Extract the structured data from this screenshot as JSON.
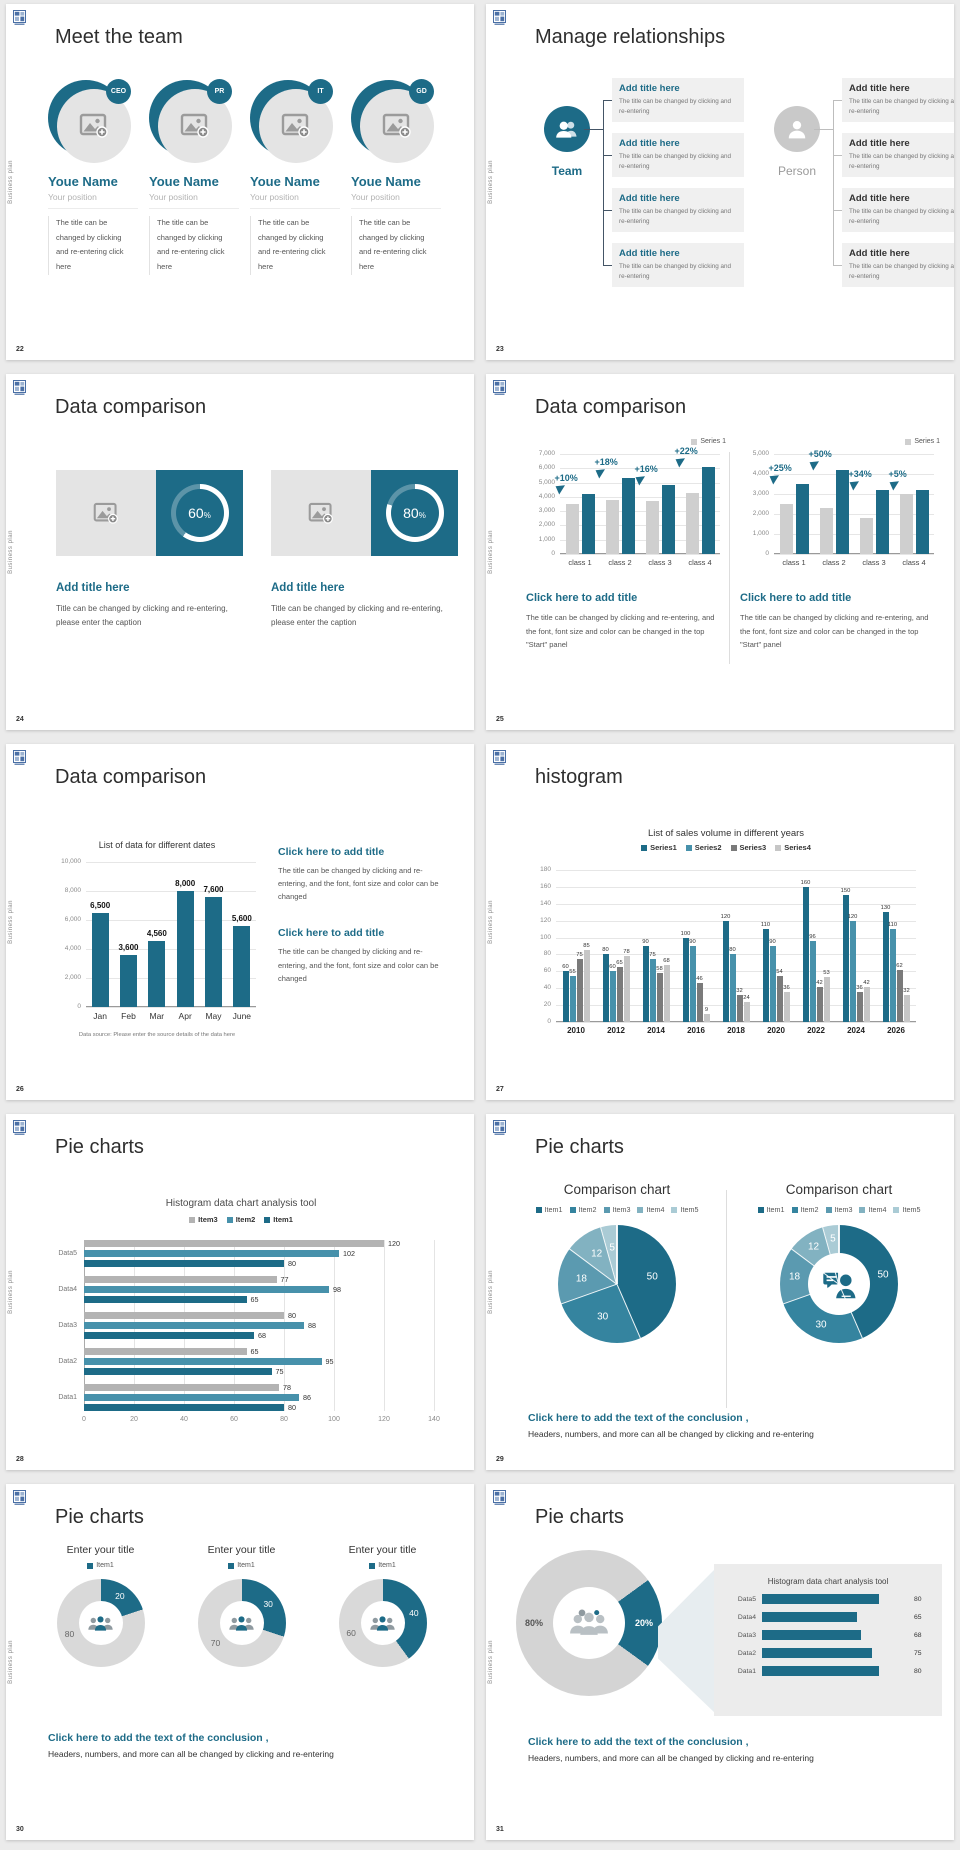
{
  "page_bg": "#ebebeb",
  "vertical_label": "Business plan",
  "colors": {
    "accent": "#1d6b87",
    "teal_mid": "#4791ab",
    "gray_bar": "#cfcfcf",
    "dark_gray_bar": "#7a7a7a",
    "light_gray_bar": "#c6c6c6",
    "donut_gray": "#d9d9d9"
  },
  "icons": {
    "logo": "grid-logo-icon",
    "image_placeholder": "image-plus-icon",
    "team": "two-people-icon",
    "person": "one-person-icon",
    "growth_arrow": "cursor-arrow-icon",
    "people_group": "three-people-icon",
    "people_gray": "three-people-gray-icon",
    "person_chat": "person-chat-icon"
  },
  "slides": {
    "s22": {
      "page": "22",
      "title": "Meet the team",
      "name": "Youe Name",
      "position": "Your position",
      "desc": "The title can be changed by clicking and re-entering click here",
      "badges": [
        "CEO",
        "PR",
        "IT",
        "GD"
      ]
    },
    "s23": {
      "page": "23",
      "title": "Manage relationships",
      "team_label": "Team",
      "person_label": "Person",
      "box_title": "Add title here",
      "box_text": "The title can be changed by clicking and re-entering"
    },
    "s24": {
      "page": "24",
      "title": "Data comparison",
      "card_title": "Add title here",
      "card_text": "Title can be changed by clicking and re-entering, please enter the caption",
      "percents": [
        "60",
        "80"
      ],
      "percent_unit": "%"
    },
    "s25": {
      "page": "25",
      "title": "Data comparison",
      "block_title": "Click here to add title",
      "block_text": "The title can be changed by clicking and re-entering, and the font, font size and color can be changed in the top \"Start\" panel"
    },
    "s26": {
      "page": "26",
      "title": "Data comparison",
      "block_title": "Click here to add title",
      "block_text": "The title can be changed by clicking and re-entering, and the font, font size and color can be changed"
    },
    "s27": {
      "page": "27",
      "title": "histogram"
    },
    "s28": {
      "page": "28",
      "title": "Pie charts"
    },
    "s29": {
      "page": "29",
      "title": "Pie charts",
      "conclusion_bold": "Click here to add the text of the conclusion ,",
      "conclusion_text": "Headers, numbers, and more can all be changed by clicking and re-entering"
    },
    "s30": {
      "page": "30",
      "title": "Pie charts",
      "group_title": "Enter your title",
      "conclusion_bold": "Click here to add the text of the conclusion ,",
      "conclusion_text": "Headers, numbers, and more can all be changed by clicking and re-entering"
    },
    "s31": {
      "page": "31",
      "title": "Pie charts",
      "conclusion_bold": "Click here to add the text of the conclusion ,",
      "conclusion_text": "Headers, numbers, and more can all be changed by clicking and re-entering"
    }
  },
  "chart_data": [
    {
      "id": "comp25a",
      "type": "bar",
      "legend": [
        "Series 1"
      ],
      "legend_position": "top-right",
      "legend_swatch": "#cfcfcf",
      "categories": [
        "class 1",
        "class 2",
        "class 3",
        "class 4"
      ],
      "series": [
        {
          "name": "base",
          "color": "#cfcfcf",
          "values": [
            3500,
            3800,
            3700,
            4300
          ]
        },
        {
          "name": "Series 1",
          "color": "#1d6b87",
          "values": [
            4200,
            5300,
            4800,
            6100
          ]
        }
      ],
      "annotations": [
        "+10%",
        "+18%",
        "+16%",
        "+22%"
      ],
      "ylim": [
        0,
        7000
      ],
      "ystep": 1000,
      "grid": true
    },
    {
      "id": "comp25b",
      "type": "bar",
      "legend": [
        "Series 1"
      ],
      "legend_position": "top-right",
      "legend_swatch": "#cfcfcf",
      "categories": [
        "class 1",
        "class 2",
        "class 3",
        "class 4"
      ],
      "series": [
        {
          "name": "base",
          "color": "#cfcfcf",
          "values": [
            2500,
            2300,
            1800,
            3000
          ]
        },
        {
          "name": "Series 1",
          "color": "#1d6b87",
          "values": [
            3500,
            4200,
            3200,
            3200
          ]
        }
      ],
      "annotations": [
        "+25%",
        "+50%",
        "+34%",
        "+5%"
      ],
      "ylim": [
        0,
        5000
      ],
      "ystep": 1000,
      "grid": true
    },
    {
      "id": "dates26",
      "type": "bar",
      "title": "List of data for different dates",
      "categories": [
        "Jan",
        "Feb",
        "Mar",
        "Apr",
        "May",
        "June"
      ],
      "series": [
        {
          "name": "data",
          "color": "#1d6b87",
          "values": [
            6500,
            3600,
            4560,
            8000,
            7600,
            5600
          ]
        }
      ],
      "value_labels": [
        "6,500",
        "3,600",
        "4,560",
        "8,000",
        "7,600",
        "5,600"
      ],
      "ylim": [
        0,
        10000
      ],
      "ystep": 2000,
      "grid": true,
      "caption": "Data source: Please enter the source details of the data here"
    },
    {
      "id": "sales27",
      "type": "bar",
      "title": "List of sales volume in different years",
      "legend_position": "top",
      "show_values": true,
      "categories": [
        "2010",
        "2012",
        "2014",
        "2016",
        "2018",
        "2020",
        "2022",
        "2024",
        "2026"
      ],
      "series": [
        {
          "name": "Series1",
          "color": "#1d6b87",
          "values": [
            60,
            80,
            90,
            100,
            120,
            110,
            160,
            150,
            130
          ]
        },
        {
          "name": "Series2",
          "color": "#4791ab",
          "values": [
            55,
            60,
            75,
            90,
            80,
            90,
            96,
            120,
            110
          ]
        },
        {
          "name": "Series3",
          "color": "#7a7a7a",
          "values": [
            75,
            65,
            58,
            46,
            32,
            54,
            42,
            36,
            62
          ]
        },
        {
          "name": "Series4",
          "color": "#c6c6c6",
          "values": [
            85,
            78,
            68,
            9,
            24,
            36,
            53,
            42,
            32
          ]
        }
      ],
      "ylim": [
        0,
        180
      ],
      "ystep": 20,
      "grid": true
    },
    {
      "id": "hbar28",
      "type": "bar-horizontal",
      "title": "Histogram data chart analysis tool",
      "legend": [
        "Item3",
        "Item2",
        "Item1"
      ],
      "categories": [
        "Data1",
        "Data2",
        "Data3",
        "Data4",
        "Data5"
      ],
      "series": [
        {
          "name": "Item1",
          "color": "#1d6b87",
          "values": [
            80,
            75,
            68,
            65,
            80
          ]
        },
        {
          "name": "Item2",
          "color": "#4791ab",
          "values": [
            86,
            95,
            88,
            98,
            102
          ]
        },
        {
          "name": "Item3",
          "color": "#b3b3b3",
          "values": [
            78,
            65,
            80,
            77,
            120
          ]
        }
      ],
      "xlim": [
        0,
        140
      ],
      "xstep": 20,
      "grid": true
    },
    {
      "id": "pie29",
      "type": "pie",
      "title": "Comparison chart",
      "labels": [
        "Item1",
        "Item2",
        "Item3",
        "Item4",
        "Item5"
      ],
      "values": [
        50,
        30,
        18,
        12,
        5
      ],
      "colors": [
        "#1d6b87",
        "#35849f",
        "#5b9ab0",
        "#82b2c1",
        "#aacbd5"
      ],
      "separators": true
    },
    {
      "id": "donut29",
      "type": "donut",
      "title": "Comparison chart",
      "labels": [
        "Item1",
        "Item2",
        "Item3",
        "Item4",
        "Item5"
      ],
      "values": [
        50,
        30,
        18,
        12,
        5
      ],
      "colors": [
        "#1d6b87",
        "#35849f",
        "#5b9ab0",
        "#82b2c1",
        "#aacbd5"
      ],
      "separators": true,
      "icon": "person_chat"
    },
    {
      "id": "donut30a",
      "type": "donut",
      "title": "Enter your title",
      "legend": [
        "Item1"
      ],
      "labels": [
        "Item1",
        ""
      ],
      "values": [
        20,
        80
      ],
      "colors": [
        "#1d6b87",
        "#d9d9d9"
      ],
      "value_labels": [
        "20",
        "80"
      ],
      "label_colors": [
        "#fff",
        "#666"
      ],
      "label_angles": [
        36,
        250
      ],
      "icon": "people_group"
    },
    {
      "id": "donut30b",
      "type": "donut",
      "title": "Enter your title",
      "legend": [
        "Item1"
      ],
      "labels": [
        "Item1",
        ""
      ],
      "values": [
        30,
        70
      ],
      "colors": [
        "#1d6b87",
        "#d9d9d9"
      ],
      "value_labels": [
        "30",
        "70"
      ],
      "label_colors": [
        "#fff",
        "#666"
      ],
      "label_angles": [
        54,
        232
      ],
      "icon": "people_group"
    },
    {
      "id": "donut30c",
      "type": "donut",
      "title": "Enter your title",
      "legend": [
        "Item1"
      ],
      "labels": [
        "Item1",
        ""
      ],
      "values": [
        40,
        60
      ],
      "colors": [
        "#1d6b87",
        "#d9d9d9"
      ],
      "value_labels": [
        "40",
        "60"
      ],
      "label_colors": [
        "#fff",
        "#666"
      ],
      "label_angles": [
        72,
        252
      ],
      "icon": "people_group"
    },
    {
      "id": "donut31",
      "type": "donut",
      "values": [
        20,
        80
      ],
      "rotate": 54,
      "colors": [
        "#1d6b87",
        "#d4d4d4"
      ],
      "value_labels": [
        "20%",
        "80%"
      ],
      "label_colors": [
        "#fff",
        "#555"
      ],
      "icon": "people_gray"
    },
    {
      "id": "hbar31",
      "type": "bar-rows",
      "title": "Histogram data chart analysis tool",
      "categories": [
        "Data5",
        "Data4",
        "Data3",
        "Data2",
        "Data1"
      ],
      "values": [
        80,
        65,
        68,
        75,
        80
      ],
      "color": "#1d6b87",
      "xmax": 100
    }
  ]
}
